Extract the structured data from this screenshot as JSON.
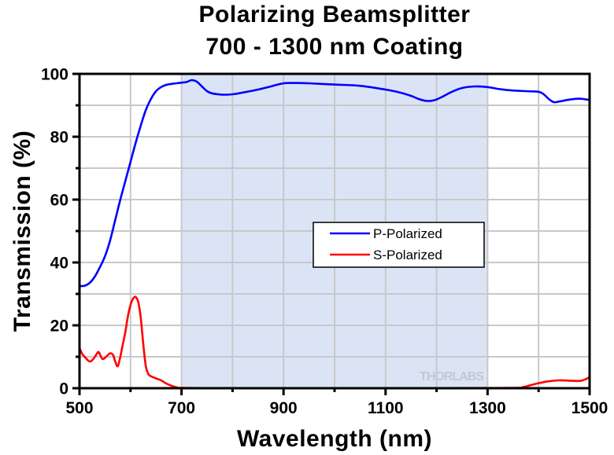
{
  "chart_data": {
    "type": "line",
    "title": "Polarizing Beamsplitter",
    "subtitle": "700 - 1300 nm Coating",
    "xlabel": "Wavelength (nm)",
    "ylabel": "Transmission (%)",
    "xlim": [
      500,
      1500
    ],
    "ylim": [
      0,
      100
    ],
    "xticks": [
      500,
      700,
      900,
      1100,
      1300,
      1500
    ],
    "xtick_labels": [
      "500",
      "700",
      "900",
      "1100",
      "1300",
      "1500"
    ],
    "xminor": [
      600,
      800,
      1000,
      1200,
      1400
    ],
    "yticks": [
      0,
      20,
      40,
      60,
      80,
      100
    ],
    "ytick_labels": [
      "0",
      "20",
      "40",
      "60",
      "80",
      "100"
    ],
    "yminor": [
      10,
      30,
      50,
      70,
      90
    ],
    "grid": true,
    "highlight_band": {
      "from": 700,
      "to": 1300,
      "color": "#dbe4f5"
    },
    "legend_position": "center-right",
    "watermark": "THORLABS",
    "series": [
      {
        "name": "P-Polarized",
        "color": "#0000ff",
        "x": [
          500,
          510,
          520,
          530,
          540,
          550,
          560,
          570,
          580,
          590,
          600,
          610,
          620,
          630,
          640,
          650,
          660,
          670,
          680,
          690,
          700,
          710,
          720,
          730,
          740,
          750,
          760,
          780,
          800,
          825,
          850,
          875,
          900,
          925,
          950,
          1000,
          1050,
          1100,
          1125,
          1150,
          1165,
          1180,
          1195,
          1210,
          1230,
          1250,
          1275,
          1300,
          1325,
          1350,
          1375,
          1400,
          1410,
          1420,
          1430,
          1440,
          1460,
          1480,
          1500
        ],
        "values": [
          32.5,
          32.6,
          33.5,
          35.5,
          38.5,
          42,
          47,
          53.5,
          60,
          66,
          72,
          78,
          83.5,
          88.5,
          92,
          94.5,
          95.8,
          96.5,
          96.8,
          97,
          97.2,
          97.4,
          98,
          97.5,
          96,
          94.5,
          93.8,
          93.4,
          93.5,
          94.2,
          95,
          96,
          97,
          97.1,
          97,
          96.6,
          96.2,
          95,
          94.2,
          93,
          92,
          91.4,
          91.6,
          92.6,
          94.3,
          95.5,
          96,
          95.8,
          95.1,
          94.7,
          94.5,
          94.3,
          93.5,
          92,
          91,
          91.2,
          91.8,
          92.1,
          91.7
        ]
      },
      {
        "name": "S-Polarized",
        "color": "#ff0000",
        "x": [
          500,
          505,
          510,
          520,
          528,
          535,
          538,
          545,
          552,
          560,
          566,
          570,
          575,
          580,
          585,
          590,
          595,
          600,
          605,
          610,
          615,
          620,
          625,
          630,
          635,
          640,
          650,
          660,
          670,
          680,
          690,
          700,
          750,
          800,
          1000,
          1200,
          1350,
          1370,
          1385,
          1400,
          1420,
          1440,
          1460,
          1480,
          1490,
          1500
        ],
        "values": [
          12.8,
          11,
          10,
          8.5,
          9.5,
          11.2,
          11.4,
          9.3,
          10,
          11.1,
          10.5,
          8.5,
          7,
          10,
          14,
          18,
          23,
          26.5,
          28.5,
          29,
          27.5,
          22.5,
          14,
          7,
          4.5,
          3.8,
          3.1,
          2.5,
          1.5,
          0.8,
          0.3,
          0.1,
          0.05,
          0.05,
          0.05,
          0.05,
          0.1,
          0.4,
          1.0,
          1.6,
          2.2,
          2.5,
          2.4,
          2.3,
          2.7,
          3.5
        ]
      }
    ]
  }
}
